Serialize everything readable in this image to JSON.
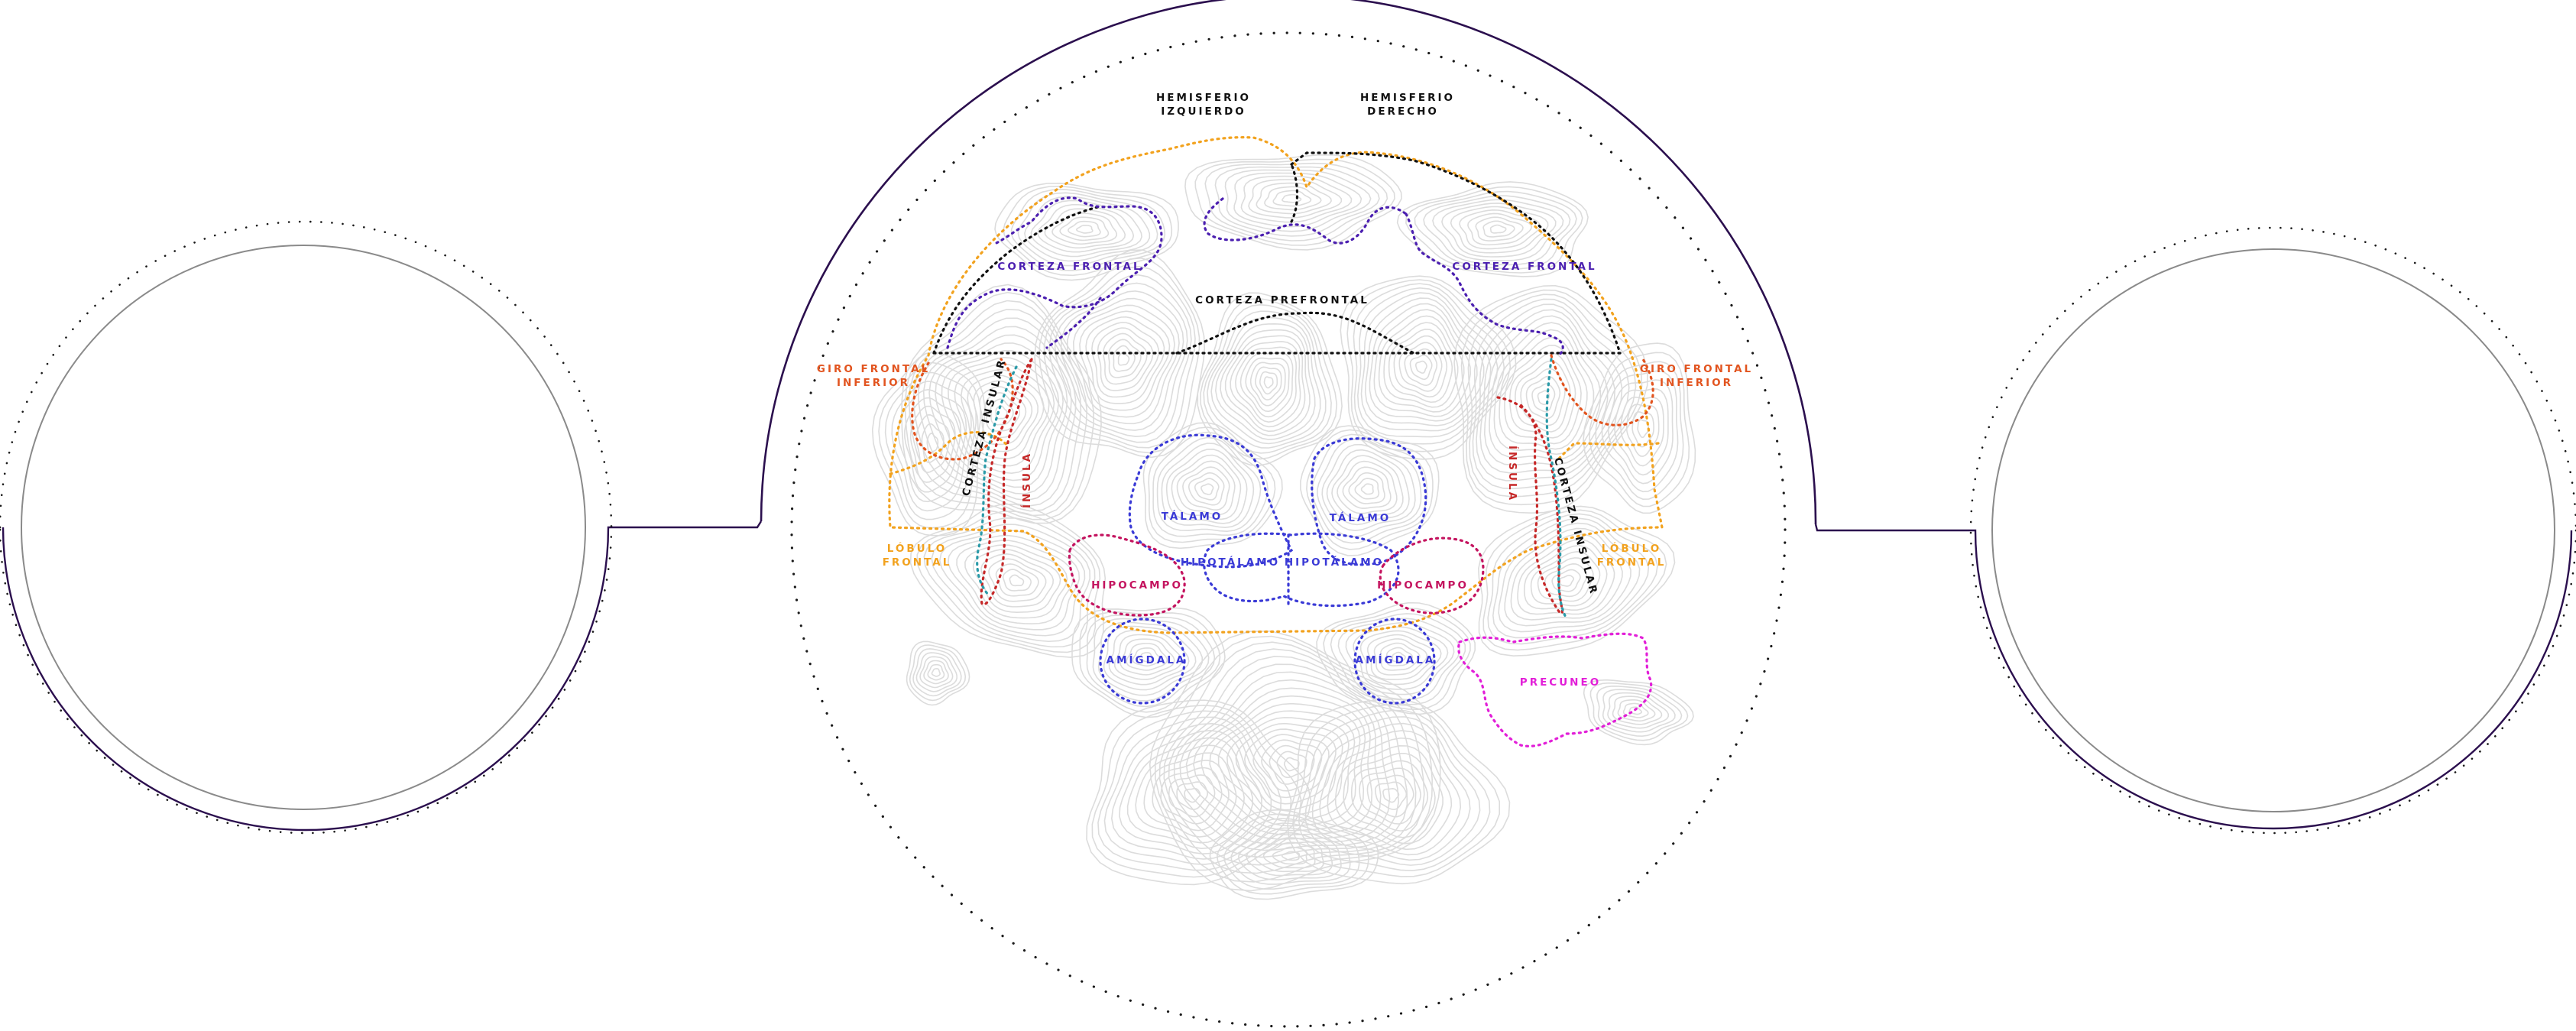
{
  "colors": {
    "frame": "#2b0f4e",
    "inner_ring": "#8a8a8a",
    "dots": "#1a1a1a",
    "contour": "#dcdcdc",
    "black": "#111111",
    "indigo": "#4b1fb0",
    "blue": "#3a3ad6",
    "orange_red": "#e2541f",
    "orange": "#f2a21e",
    "red": "#c62828",
    "teal": "#2a9aa8",
    "crimson": "#c4145f",
    "magenta": "#e21fd8"
  },
  "labels": {
    "hemisferio_izquierdo": [
      "HEMISFERIO",
      "IZQUIERDO"
    ],
    "hemisferio_derecho": [
      "HEMISFERIO",
      "DERECHO"
    ],
    "corteza_frontal_left": "CORTEZA FRONTAL",
    "corteza_frontal_right": "CORTEZA FRONTAL",
    "corteza_prefrontal": "CORTEZA PREFRONTAL",
    "giro_frontal_inferior_left": [
      "GIRO FRONTAL",
      "INFERIOR"
    ],
    "giro_frontal_inferior_right": [
      "GIRO FRONTAL",
      "INFERIOR"
    ],
    "corteza_insular_left": "CORTEZA INSULAR",
    "corteza_insular_right": "CORTEZA INSULAR",
    "insula_left": "ÍNSULA",
    "insula_right": "ÍNSULA",
    "lobulo_frontal_left": [
      "LÓBULO",
      "FRONTAL"
    ],
    "lobulo_frontal_right": [
      "LÓBULO",
      "FRONTAL"
    ],
    "talamo_left": "TÁLAMO",
    "talamo_right": "TÁLAMO",
    "hipotalamo_left": "HIPOTÁLAMO",
    "hipotalamo_right": "HIPOTÁLAMO",
    "hipocampo_left": "HIPOCAMPO",
    "hipocampo_right": "HIPOCAMPO",
    "amigdala_left": "AMÍGDALA",
    "amigdala_right": "AMÍGDALA",
    "precuneo": "PRECUNEO"
  }
}
